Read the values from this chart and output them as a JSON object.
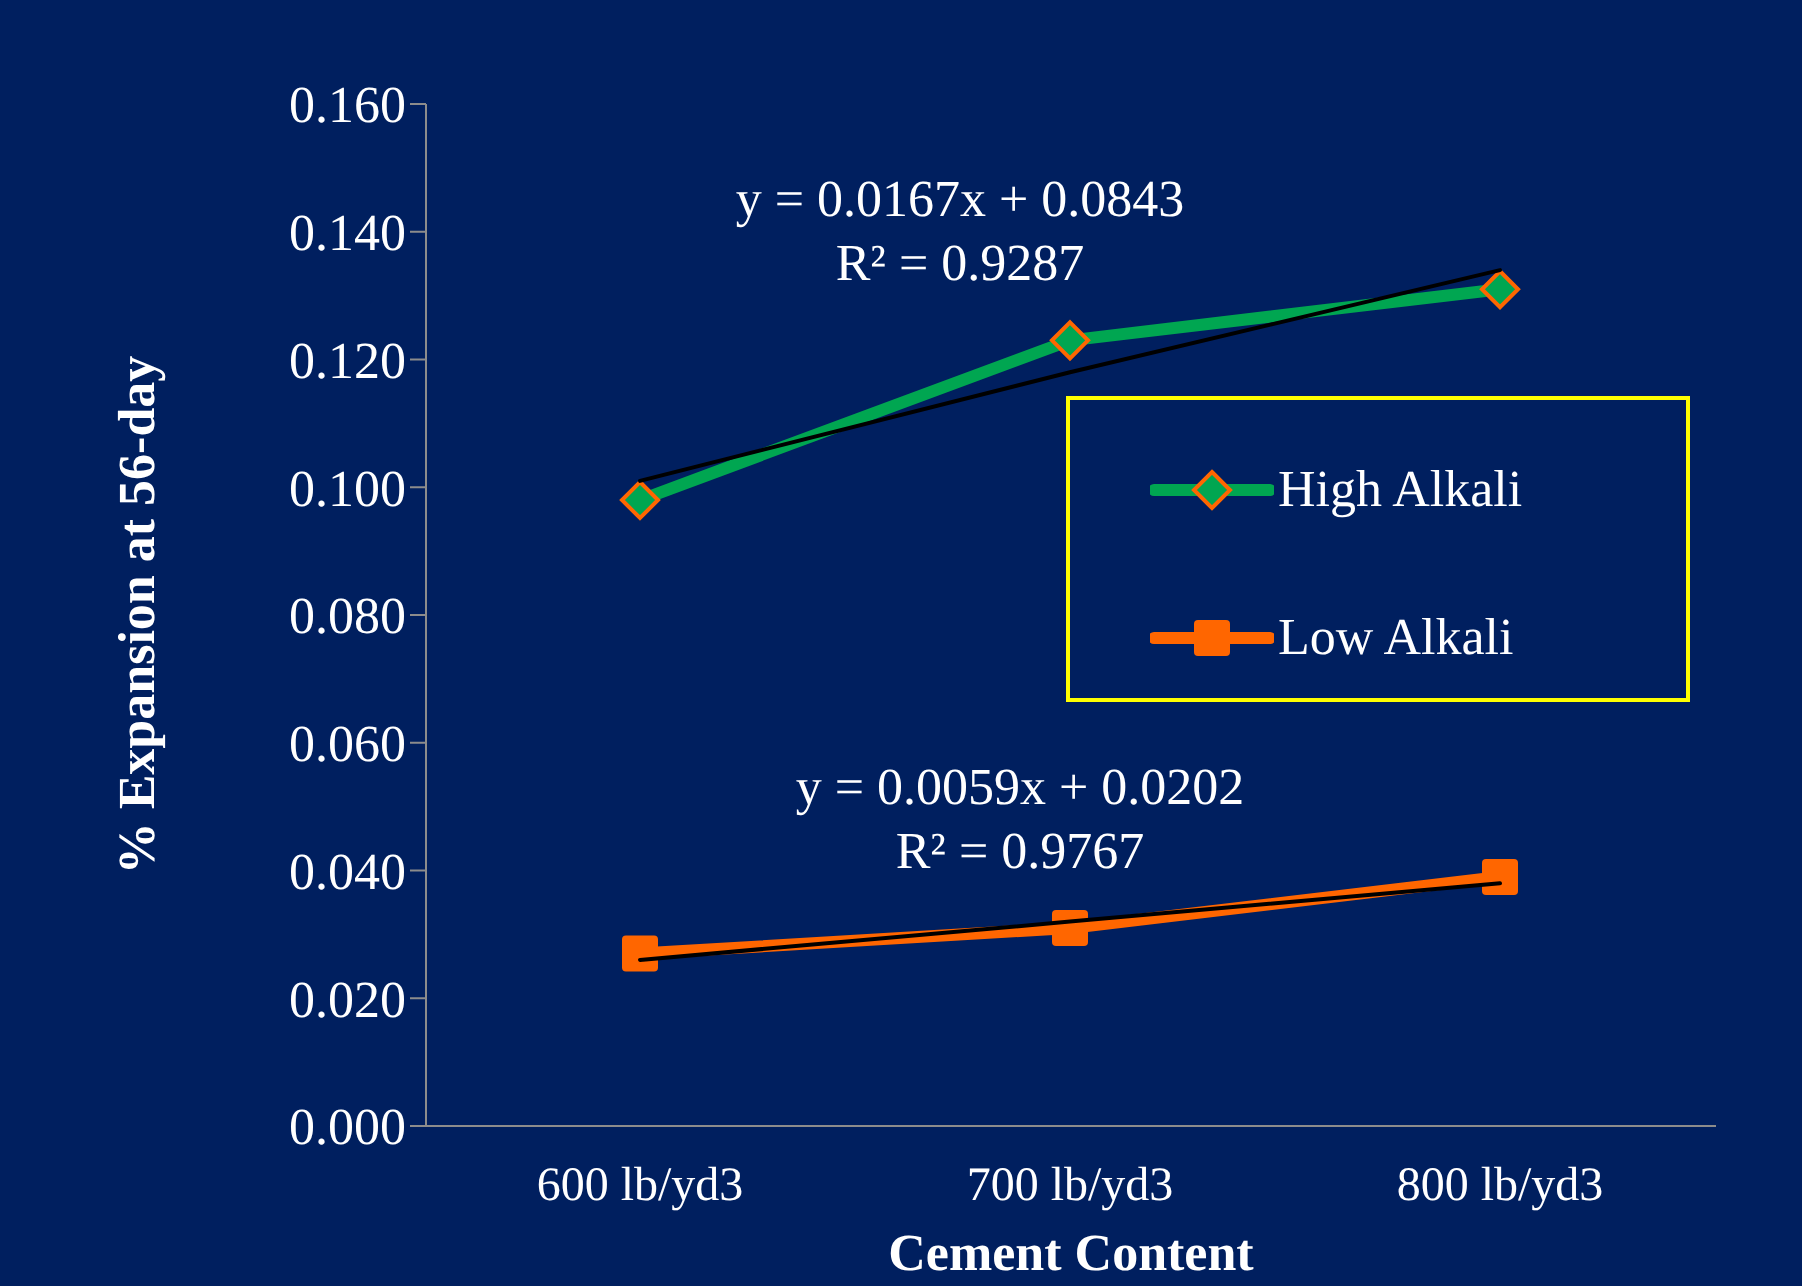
{
  "chart_data": {
    "type": "line",
    "xlabel": "Cement Content",
    "ylabel": "% Expansion at 56-day",
    "categories": [
      "600 lb/yd3",
      "700 lb/yd3",
      "800 lb/yd3"
    ],
    "series": [
      {
        "name": "High Alkali",
        "color": "#00a651",
        "values": [
          0.098,
          0.123,
          0.131
        ],
        "marker": "diamond"
      },
      {
        "name": "Low Alkali",
        "color": "#ff6600",
        "values": [
          0.027,
          0.031,
          0.039
        ],
        "marker": "square"
      },
      {
        "type": "line",
        "color": "#000000",
        "x": [
          "600 lb/yd3",
          "700 lb/yd3",
          "800 lb/yd3"
        ],
        "values": [
          0.101,
          0.118,
          0.134
        ],
        "marker": "none"
      },
      {
        "type": "line",
        "color": "#000000",
        "x": [
          "600 lb/yd3",
          "700 lb/yd3",
          "800 lb/yd3"
        ],
        "values": [
          0.026,
          0.032,
          0.038
        ],
        "marker": "none"
      }
    ],
    "ylim": [
      0,
      0.16
    ],
    "yticks": [
      {
        "value": 0,
        "label": "0.000"
      },
      {
        "value": 0.02,
        "label": "0.020"
      },
      {
        "value": 0.04,
        "label": "0.040"
      },
      {
        "value": 0.06,
        "label": "0.060"
      },
      {
        "value": 0.08,
        "label": "0.080"
      },
      {
        "value": 0.1,
        "label": "0.100"
      },
      {
        "value": 0.12,
        "label": "0.120"
      },
      {
        "value": 0.14,
        "label": "0.140"
      },
      {
        "value": 0.16,
        "label": "0.160"
      }
    ],
    "annotations": [
      "y = 0.0167x + 0.0843\nR² = 0.9287",
      "y = 0.0059x + 0.0202\nR² = 0.9767"
    ],
    "legend": "right",
    "grid": false
  }
}
